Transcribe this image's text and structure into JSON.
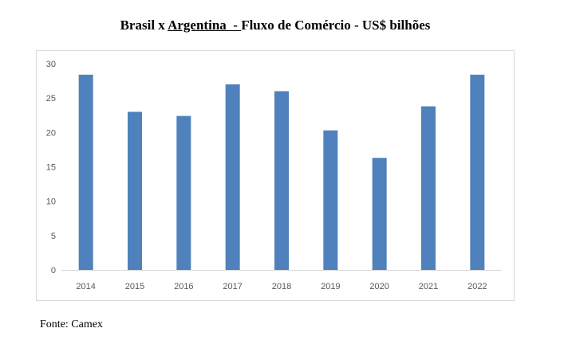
{
  "title": {
    "prefix": "Brasil x ",
    "underlined": "Argentina  - ",
    "suffix": "Fluxo de Comércio - US$ bilhões"
  },
  "source": "Fonte: Camex",
  "chart_data": {
    "type": "bar",
    "title": "Brasil x Argentina  - Fluxo de Comércio - US$ bilhões",
    "xlabel": "",
    "ylabel": "",
    "categories": [
      "2014",
      "2015",
      "2016",
      "2017",
      "2018",
      "2019",
      "2020",
      "2021",
      "2022"
    ],
    "values": [
      28.4,
      23.0,
      22.4,
      27.0,
      26.0,
      20.3,
      16.3,
      23.8,
      28.4
    ],
    "ylim": [
      0,
      30
    ],
    "yticks": [
      0,
      5,
      10,
      15,
      20,
      25,
      30
    ],
    "grid": false,
    "legend": "none",
    "bar_color": "#4f81bd",
    "axis_color": "#d9d9d9",
    "tick_color": "#595959"
  }
}
